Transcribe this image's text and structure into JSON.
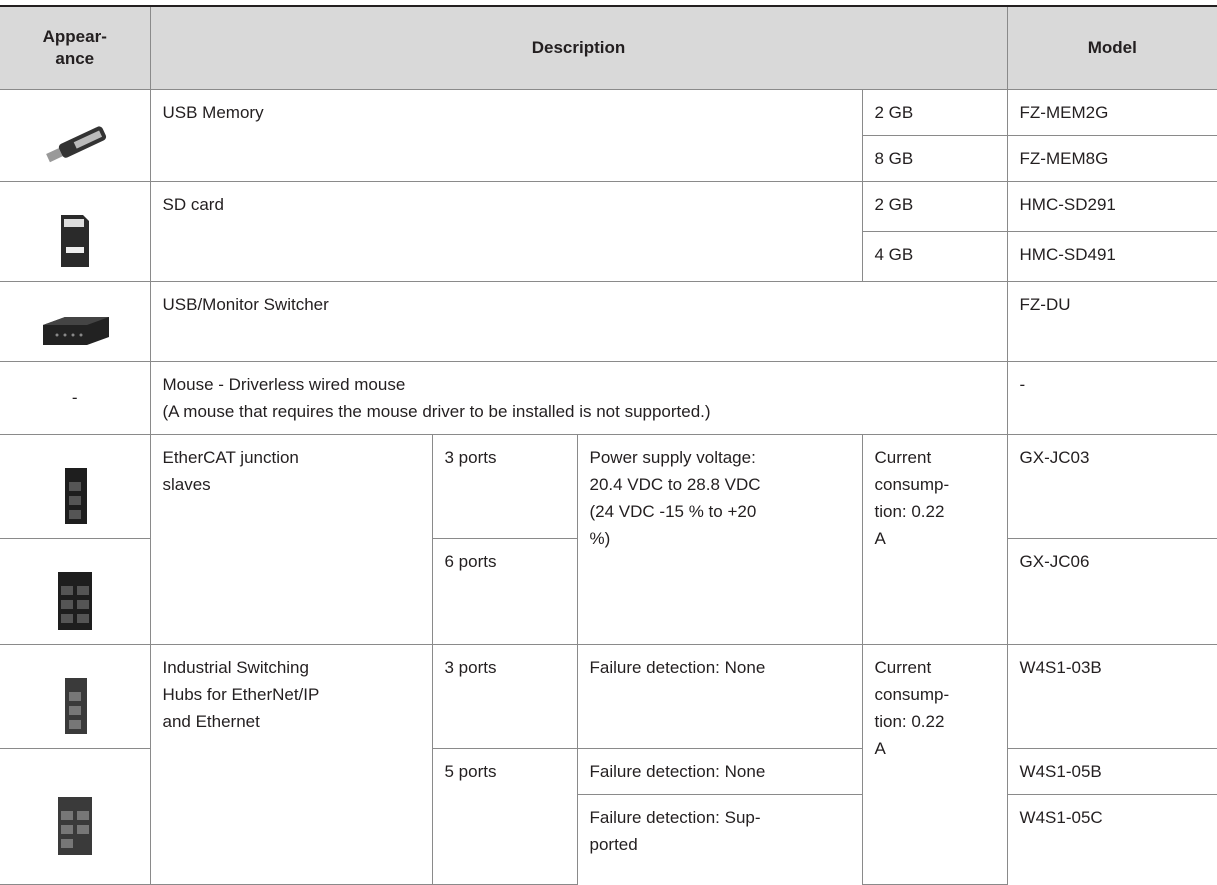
{
  "table": {
    "header": [
      "Appear-\nance",
      "Description",
      "Model"
    ],
    "rows": [
      [
        "USB Memory",
        "2 GB",
        "FZ-MEM2G"
      ],
      [
        "8 GB",
        "FZ-MEM8G"
      ],
      [
        "SD card",
        "2 GB",
        "HMC-SD291"
      ],
      [
        "4 GB",
        "HMC-SD491"
      ],
      [
        "USB/Monitor Switcher",
        "FZ-DU"
      ],
      [
        "-",
        "Mouse - Driverless wired mouse\n(A mouse that requires the mouse driver to be installed is not supported.)",
        "-"
      ],
      [
        "EtherCAT junction\nslaves",
        "3 ports",
        "Power supply voltage:\n20.4 VDC to 28.8 VDC\n(24 VDC -15 % to +20\n%)",
        "Current\nconsump-\ntion: 0.22\nA",
        "GX-JC03"
      ],
      [
        "6 ports",
        "GX-JC06"
      ],
      [
        "Industrial Switching\nHubs for EtherNet/IP\nand Ethernet",
        "3 ports",
        "Failure detection: None",
        "Current\nconsump-\ntion: 0.22\nA",
        "W4S1-03B"
      ],
      [
        "5 ports",
        "Failure detection: None",
        "W4S1-05B"
      ],
      [
        "Failure detection: Sup-\nported",
        "W4S1-05C"
      ]
    ]
  }
}
